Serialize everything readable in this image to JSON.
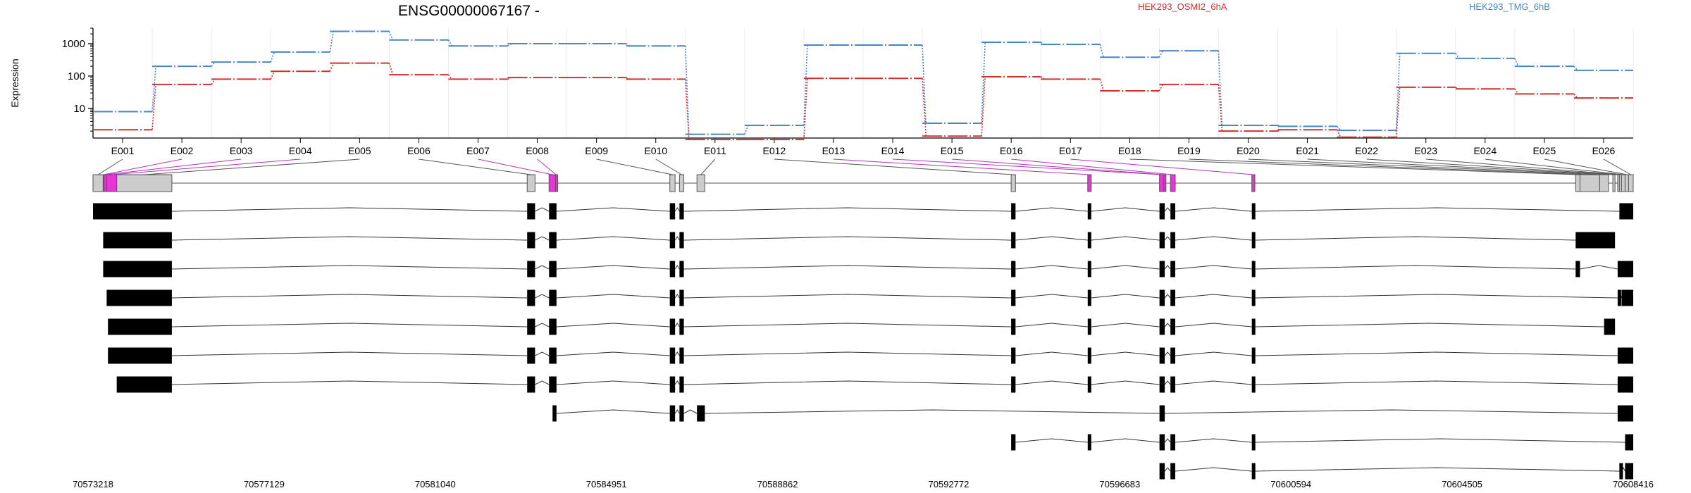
{
  "title": "ENSG00000067167 -",
  "chart_data": {
    "type": "line",
    "ylabel": "Expression",
    "y_scale": "log",
    "ylim": [
      1,
      3000
    ],
    "yticks": [
      10,
      100,
      1000
    ],
    "ytick_labels": [
      "10",
      "100",
      "1000"
    ],
    "x_categories": [
      "E001",
      "E002",
      "E003",
      "E004",
      "E005",
      "E006",
      "E007",
      "E008",
      "E009",
      "E010",
      "E011",
      "E012",
      "E013",
      "E014",
      "E015",
      "E016",
      "E017",
      "E018",
      "E019",
      "E020",
      "E021",
      "E022",
      "E023",
      "E024",
      "E025",
      "E026"
    ],
    "series": [
      {
        "name": "HEK293_OSMI2_6hA",
        "color": "#d03030",
        "values": [
          2.2,
          55,
          80,
          140,
          250,
          110,
          80,
          90,
          90,
          80,
          1.1,
          1.1,
          85,
          85,
          1.4,
          95,
          80,
          35,
          55,
          2.0,
          2.2,
          1.3,
          45,
          40,
          28,
          21
        ]
      },
      {
        "name": "HEK293_TMG_6hB",
        "color": "#4a86c6",
        "values": [
          8,
          200,
          270,
          550,
          2400,
          1300,
          850,
          1000,
          1000,
          850,
          1.6,
          3,
          900,
          900,
          3.5,
          1100,
          950,
          380,
          600,
          3,
          2.8,
          2.1,
          500,
          350,
          200,
          150
        ]
      }
    ],
    "gene_axis": {
      "start": 70573218,
      "end": 70608416,
      "tick_labels": [
        "70573218",
        "70577129",
        "70581040",
        "70584951",
        "70588862",
        "70592772",
        "70596683",
        "70600594",
        "70604505",
        "70608416"
      ]
    },
    "exon_bins": [
      {
        "id": "E001",
        "gstart": 70573218,
        "gend": 70573450,
        "hl": false
      },
      {
        "id": "E002",
        "gstart": 70573450,
        "gend": 70573470,
        "hl": true
      },
      {
        "id": "E003",
        "gstart": 70573470,
        "gend": 70573530,
        "hl": true
      },
      {
        "id": "E004",
        "gstart": 70573530,
        "gend": 70573760,
        "hl": true
      },
      {
        "id": "E005",
        "gstart": 70573760,
        "gend": 70575020,
        "hl": false
      },
      {
        "id": "E006",
        "gstart": 70583140,
        "gend": 70583320,
        "hl": false
      },
      {
        "id": "E007",
        "gstart": 70583640,
        "gend": 70583790,
        "hl": true
      },
      {
        "id": "E008",
        "gstart": 70583790,
        "gend": 70583810,
        "hl": true
      },
      {
        "id": "E009",
        "gstart": 70586400,
        "gend": 70586520,
        "hl": false
      },
      {
        "id": "E010",
        "gstart": 70586620,
        "gend": 70586720,
        "hl": false
      },
      {
        "id": "E011",
        "gstart": 70587020,
        "gend": 70587200,
        "hl": false
      },
      {
        "id": "E012",
        "gstart": 70594200,
        "gend": 70594300,
        "hl": false
      },
      {
        "id": "E013",
        "gstart": 70595950,
        "gend": 70596030,
        "hl": true
      },
      {
        "id": "E014",
        "gstart": 70597590,
        "gend": 70597690,
        "hl": true
      },
      {
        "id": "E015",
        "gstart": 70597690,
        "gend": 70597710,
        "hl": true
      },
      {
        "id": "E016",
        "gstart": 70597840,
        "gend": 70597950,
        "hl": true
      },
      {
        "id": "E017",
        "gstart": 70599700,
        "gend": 70599770,
        "hl": true
      },
      {
        "id": "E018",
        "gstart": 70607100,
        "gend": 70607200,
        "hl": false
      },
      {
        "id": "E019",
        "gstart": 70607200,
        "gend": 70607650,
        "hl": false
      },
      {
        "id": "E020",
        "gstart": 70607650,
        "gend": 70607850,
        "hl": false
      },
      {
        "id": "E021",
        "gstart": 70607950,
        "gend": 70608000,
        "hl": false
      },
      {
        "id": "E022",
        "gstart": 70608060,
        "gend": 70608100,
        "hl": false
      },
      {
        "id": "E023",
        "gstart": 70608100,
        "gend": 70608150,
        "hl": false
      },
      {
        "id": "E024",
        "gstart": 70608150,
        "gend": 70608230,
        "hl": false
      },
      {
        "id": "E025",
        "gstart": 70608230,
        "gend": 70608310,
        "hl": false
      },
      {
        "id": "E026",
        "gstart": 70608310,
        "gend": 70608416,
        "hl": false
      }
    ],
    "transcripts": [
      [
        [
          70573218,
          70575020
        ],
        [
          70583140,
          70583320
        ],
        [
          70583640,
          70583810
        ],
        [
          70586400,
          70586520
        ],
        [
          70586620,
          70586720
        ],
        [
          70594200,
          70594300
        ],
        [
          70595950,
          70596030
        ],
        [
          70597590,
          70597710
        ],
        [
          70597840,
          70597950
        ],
        [
          70599700,
          70599770
        ],
        [
          70608100,
          70608416
        ]
      ],
      [
        [
          70573450,
          70575020
        ],
        [
          70583140,
          70583320
        ],
        [
          70583640,
          70583810
        ],
        [
          70586400,
          70586520
        ],
        [
          70586620,
          70586720
        ],
        [
          70594200,
          70594300
        ],
        [
          70595950,
          70596030
        ],
        [
          70597590,
          70597710
        ],
        [
          70597840,
          70597950
        ],
        [
          70599700,
          70599770
        ],
        [
          70607100,
          70608000
        ]
      ],
      [
        [
          70573450,
          70575020
        ],
        [
          70583140,
          70583320
        ],
        [
          70583640,
          70583810
        ],
        [
          70586400,
          70586520
        ],
        [
          70586620,
          70586720
        ],
        [
          70594200,
          70594300
        ],
        [
          70595950,
          70596030
        ],
        [
          70597590,
          70597710
        ],
        [
          70597840,
          70597950
        ],
        [
          70599700,
          70599770
        ],
        [
          70607100,
          70607200
        ],
        [
          70608060,
          70608416
        ]
      ],
      [
        [
          70573530,
          70575020
        ],
        [
          70583140,
          70583320
        ],
        [
          70583640,
          70583810
        ],
        [
          70586400,
          70586520
        ],
        [
          70586620,
          70586720
        ],
        [
          70594200,
          70594300
        ],
        [
          70595950,
          70596030
        ],
        [
          70597590,
          70597710
        ],
        [
          70597840,
          70597950
        ],
        [
          70599700,
          70599770
        ],
        [
          70608060,
          70608100
        ],
        [
          70608150,
          70608416
        ]
      ],
      [
        [
          70573560,
          70575020
        ],
        [
          70583140,
          70583320
        ],
        [
          70583640,
          70583810
        ],
        [
          70586400,
          70586520
        ],
        [
          70586620,
          70586720
        ],
        [
          70594200,
          70594300
        ],
        [
          70595950,
          70596030
        ],
        [
          70597590,
          70597710
        ],
        [
          70597840,
          70597950
        ],
        [
          70599700,
          70599770
        ],
        [
          70607750,
          70608000
        ]
      ],
      [
        [
          70573560,
          70575020
        ],
        [
          70583140,
          70583320
        ],
        [
          70583640,
          70583810
        ],
        [
          70586400,
          70586520
        ],
        [
          70586620,
          70586720
        ],
        [
          70594200,
          70594300
        ],
        [
          70595950,
          70596030
        ],
        [
          70597590,
          70597710
        ],
        [
          70597840,
          70597950
        ],
        [
          70599700,
          70599770
        ],
        [
          70608060,
          70608150
        ],
        [
          70608150,
          70608416
        ]
      ],
      [
        [
          70573760,
          70575020
        ],
        [
          70583140,
          70583320
        ],
        [
          70583640,
          70583810
        ],
        [
          70586400,
          70586520
        ],
        [
          70586620,
          70586720
        ],
        [
          70594200,
          70594300
        ],
        [
          70595950,
          70596030
        ],
        [
          70597590,
          70597710
        ],
        [
          70597840,
          70597950
        ],
        [
          70599700,
          70599770
        ],
        [
          70608060,
          70608416
        ]
      ],
      [
        [
          70583720,
          70583810
        ],
        [
          70586400,
          70586520
        ],
        [
          70586620,
          70586720
        ],
        [
          70587020,
          70587200
        ],
        [
          70597590,
          70597710
        ],
        [
          70608060,
          70608416
        ]
      ],
      [
        [
          70594200,
          70594300
        ],
        [
          70595950,
          70596030
        ],
        [
          70597590,
          70597710
        ],
        [
          70597840,
          70597950
        ],
        [
          70599700,
          70599770
        ],
        [
          70608230,
          70608416
        ]
      ],
      [
        [
          70597590,
          70597710
        ],
        [
          70597840,
          70597950
        ],
        [
          70599700,
          70599770
        ],
        [
          70608100,
          70608150
        ],
        [
          70608230,
          70608416
        ]
      ]
    ]
  }
}
